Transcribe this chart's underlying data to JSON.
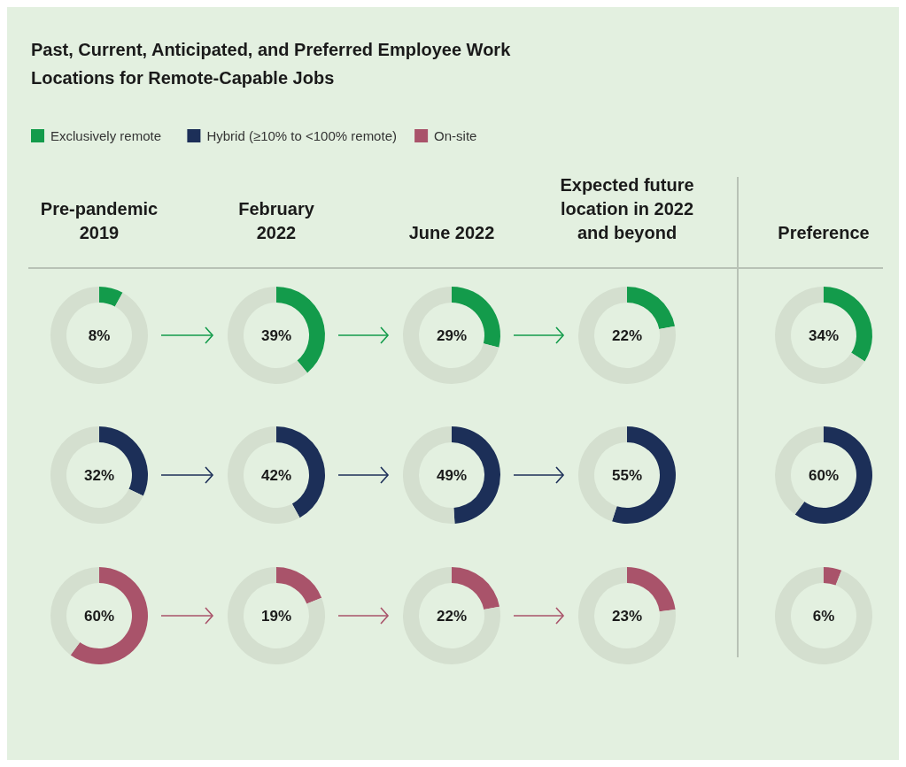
{
  "chart_data": [
    {
      "type": "other",
      "title": "Past, Current, Anticipated, and Preferred Employee Work Locations for Remote-Capable Jobs",
      "legend": "top left",
      "series": [
        {
          "name": "Exclusively remote",
          "color": "#139b4b"
        },
        {
          "name": "Hybrid (≥10% to <100% remote)",
          "color": "#1c2f58"
        },
        {
          "name": "On-site",
          "color": "#a9536a"
        }
      ]
    },
    {
      "type": "donut",
      "title": "Pre-pandemic 2019",
      "categories": [
        null,
        null
      ],
      "values": [
        8,
        92
      ],
      "colors": [
        "#139b4b",
        "#d4dfcf"
      ],
      "annotations": [
        "8%"
      ]
    },
    {
      "type": "donut",
      "title": "February 2022",
      "categories": [
        null,
        null
      ],
      "values": [
        39,
        61
      ],
      "colors": [
        "#139b4b",
        "#d4dfcf"
      ],
      "annotations": [
        "39%"
      ]
    },
    {
      "type": "donut",
      "title": "June 2022",
      "categories": [
        null,
        null
      ],
      "values": [
        29,
        71
      ],
      "colors": [
        "#139b4b",
        "#d4dfcf"
      ],
      "annotations": [
        "29%"
      ]
    },
    {
      "type": "donut",
      "title": "Expected future location in 2022 and beyond",
      "categories": [
        null,
        null
      ],
      "values": [
        22,
        78
      ],
      "colors": [
        "#139b4b",
        "#d4dfcf"
      ],
      "annotations": [
        "22%"
      ]
    },
    {
      "type": "donut",
      "title": "Preference",
      "categories": [
        null,
        null
      ],
      "values": [
        34,
        66
      ],
      "colors": [
        "#139b4b",
        "#d4dfcf"
      ],
      "annotations": [
        "34%"
      ]
    },
    {
      "type": "donut",
      "categories": [
        null,
        null
      ],
      "values": [
        32,
        68
      ],
      "colors": [
        "#1c2f58",
        "#d4dfcf"
      ],
      "annotations": [
        "32%"
      ]
    },
    {
      "type": "donut",
      "categories": [
        null,
        null
      ],
      "values": [
        42,
        58
      ],
      "colors": [
        "#1c2f58",
        "#d4dfcf"
      ],
      "annotations": [
        "42%"
      ]
    },
    {
      "type": "donut",
      "categories": [
        null,
        null
      ],
      "values": [
        49,
        51
      ],
      "colors": [
        "#1c2f58",
        "#d4dfcf"
      ],
      "annotations": [
        "49%"
      ]
    },
    {
      "type": "donut",
      "categories": [
        null,
        null
      ],
      "values": [
        55,
        45
      ],
      "colors": [
        "#1c2f58",
        "#d4dfcf"
      ],
      "annotations": [
        "55%"
      ]
    },
    {
      "type": "donut",
      "categories": [
        null,
        null
      ],
      "values": [
        60,
        40
      ],
      "colors": [
        "#1c2f58",
        "#d4dfcf"
      ],
      "annotations": [
        "60%"
      ]
    },
    {
      "type": "donut",
      "categories": [
        null,
        null
      ],
      "values": [
        60,
        40
      ],
      "colors": [
        "#a9536a",
        "#d4dfcf"
      ],
      "annotations": [
        "60%"
      ]
    },
    {
      "type": "donut",
      "categories": [
        null,
        null
      ],
      "values": [
        19,
        81
      ],
      "colors": [
        "#a9536a",
        "#d4dfcf"
      ],
      "annotations": [
        "19%"
      ]
    },
    {
      "type": "donut",
      "categories": [
        null,
        null
      ],
      "values": [
        22,
        78
      ],
      "colors": [
        "#a9536a",
        "#d4dfcf"
      ],
      "annotations": [
        "22%"
      ]
    },
    {
      "type": "donut",
      "categories": [
        null,
        null
      ],
      "values": [
        23,
        77
      ],
      "colors": [
        "#a9536a",
        "#d4dfcf"
      ],
      "annotations": [
        "23%"
      ]
    },
    {
      "type": "donut",
      "categories": [
        null,
        null
      ],
      "values": [
        6,
        94
      ],
      "colors": [
        "#a9536a",
        "#d4dfcf"
      ],
      "annotations": [
        "6%"
      ]
    }
  ]
}
